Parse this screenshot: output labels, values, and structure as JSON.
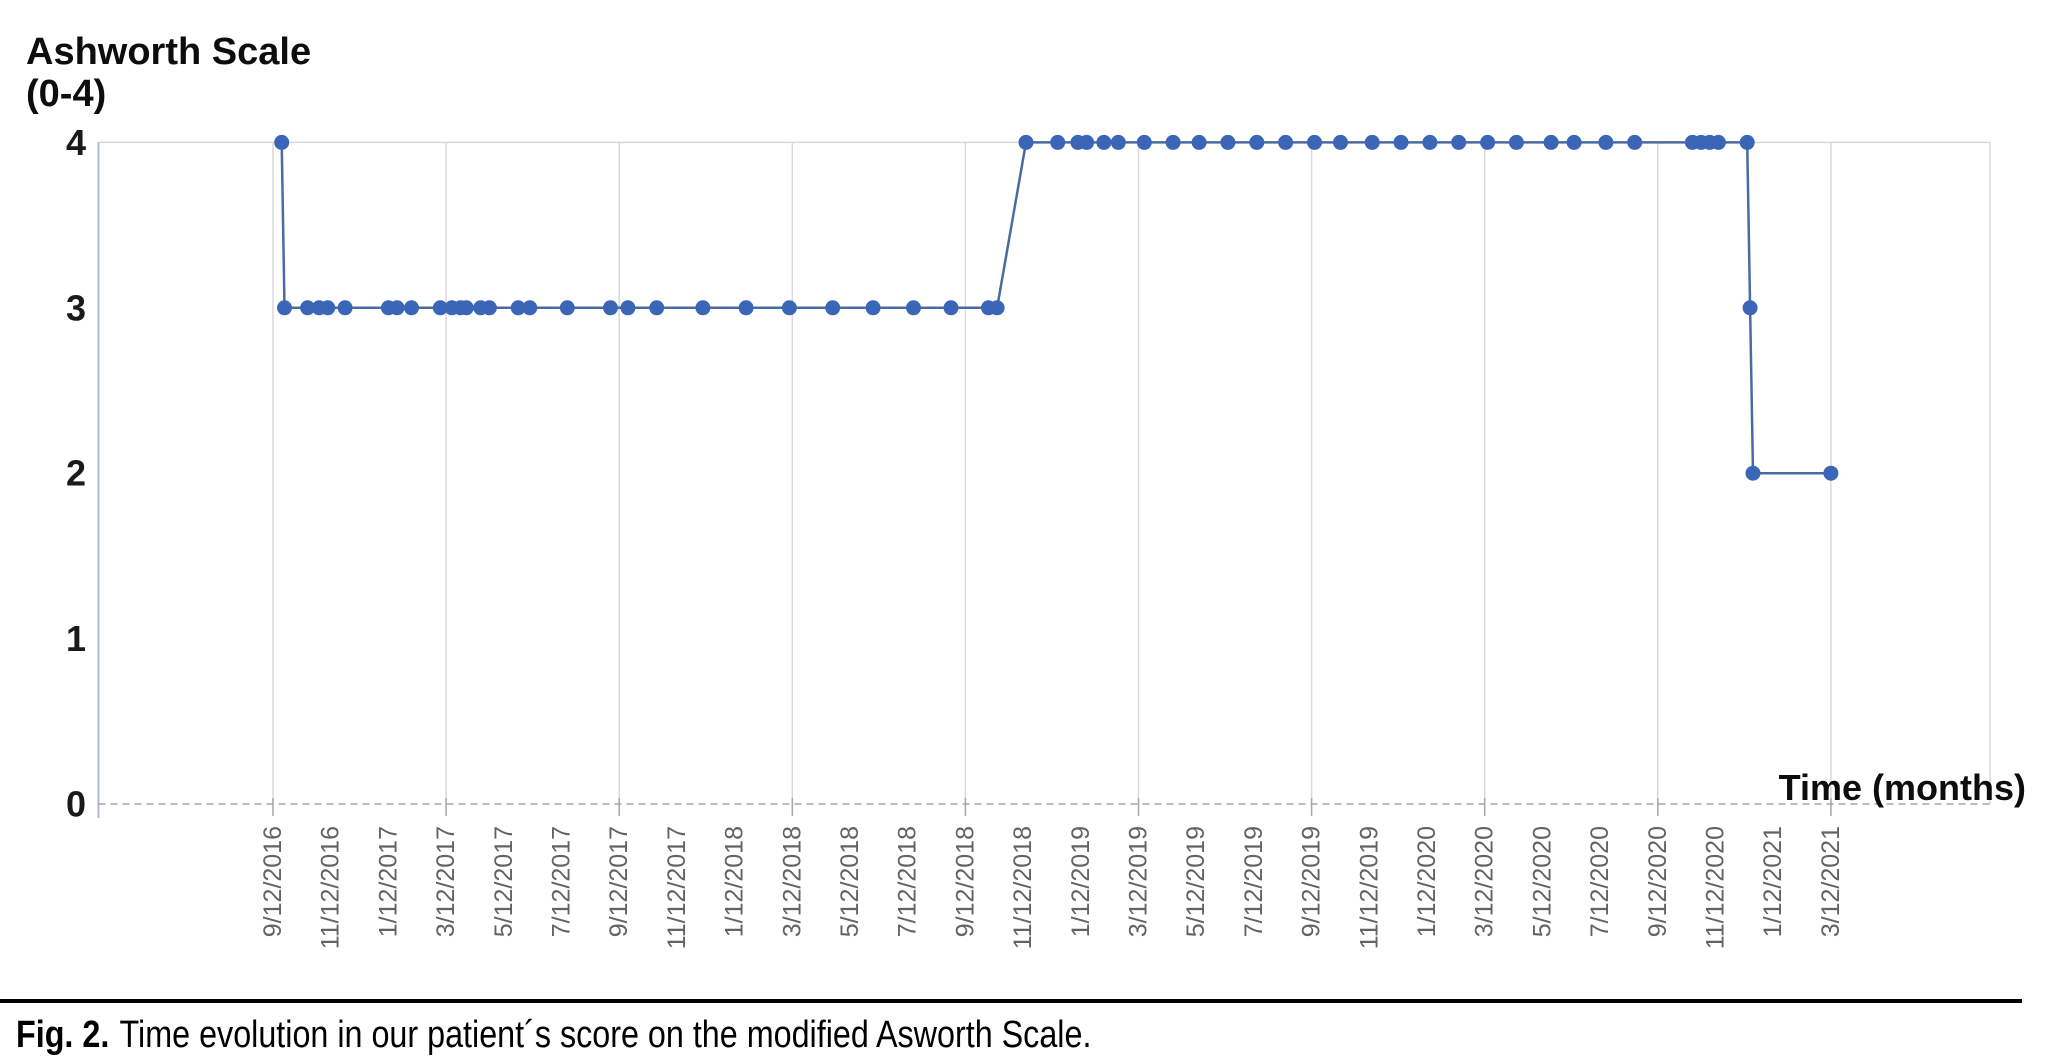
{
  "figure": {
    "y_axis_title_line1": "Ashworth Scale",
    "y_axis_title_line2": "(0-4)",
    "x_axis_title": "Time (months)",
    "caption_label": "Fig. 2.",
    "caption_text": "Time evolution in our patient´s score on the modified Asworth Scale."
  },
  "chart_data": {
    "type": "line",
    "title": "",
    "ylabel": "Ashworth Scale (0-4)",
    "xlabel": "Time (months)",
    "ylim": [
      0,
      4
    ],
    "y_ticks": [
      0,
      1,
      2,
      3,
      4
    ],
    "x_unit": "months since 9/12/2016",
    "x_tick_interval_months": 2,
    "gridline_every_months": 6,
    "grid": "vertical-only",
    "legend": "none",
    "x_tick_labels": [
      "9/12/2016",
      "11/12/2016",
      "1/12/2017",
      "3/12/2017",
      "5/12/2017",
      "7/12/2017",
      "9/12/2017",
      "11/12/2017",
      "1/12/2018",
      "3/12/2018",
      "5/12/2018",
      "7/12/2018",
      "9/12/2018",
      "11/12/2018",
      "1/12/2019",
      "3/12/2019",
      "5/12/2019",
      "7/12/2019",
      "9/12/2019",
      "11/12/2019",
      "1/12/2020",
      "3/12/2020",
      "5/12/2020",
      "7/12/2020",
      "9/12/2020",
      "11/12/2020",
      "1/12/2021",
      "3/12/2021"
    ],
    "series": [
      {
        "name": "Modified Ashworth score",
        "points": [
          [
            0.3,
            4
          ],
          [
            0.4,
            3
          ],
          [
            1.2,
            3
          ],
          [
            1.6,
            3
          ],
          [
            1.9,
            3
          ],
          [
            2.5,
            3
          ],
          [
            4.0,
            3
          ],
          [
            4.3,
            3
          ],
          [
            4.8,
            3
          ],
          [
            5.8,
            3
          ],
          [
            6.2,
            3
          ],
          [
            6.5,
            3
          ],
          [
            6.7,
            3
          ],
          [
            7.2,
            3
          ],
          [
            7.5,
            3
          ],
          [
            8.5,
            3
          ],
          [
            8.9,
            3
          ],
          [
            10.2,
            3
          ],
          [
            11.7,
            3
          ],
          [
            12.3,
            3
          ],
          [
            13.3,
            3
          ],
          [
            14.9,
            3
          ],
          [
            16.4,
            3
          ],
          [
            17.9,
            3
          ],
          [
            19.4,
            3
          ],
          [
            20.8,
            3
          ],
          [
            22.2,
            3
          ],
          [
            23.5,
            3
          ],
          [
            24.8,
            3
          ],
          [
            25.1,
            3
          ],
          [
            26.1,
            4
          ],
          [
            27.2,
            4
          ],
          [
            27.9,
            4
          ],
          [
            28.2,
            4
          ],
          [
            28.8,
            4
          ],
          [
            29.3,
            4
          ],
          [
            30.2,
            4
          ],
          [
            31.2,
            4
          ],
          [
            32.1,
            4
          ],
          [
            33.1,
            4
          ],
          [
            34.1,
            4
          ],
          [
            35.1,
            4
          ],
          [
            36.1,
            4
          ],
          [
            37.0,
            4
          ],
          [
            38.1,
            4
          ],
          [
            39.1,
            4
          ],
          [
            40.1,
            4
          ],
          [
            41.1,
            4
          ],
          [
            42.1,
            4
          ],
          [
            43.1,
            4
          ],
          [
            44.3,
            4
          ],
          [
            45.1,
            4
          ],
          [
            46.2,
            4
          ],
          [
            47.2,
            4
          ],
          [
            49.2,
            4
          ],
          [
            49.5,
            4
          ],
          [
            49.8,
            4
          ],
          [
            50.1,
            4
          ],
          [
            51.1,
            4
          ],
          [
            51.2,
            3
          ],
          [
            51.3,
            2
          ],
          [
            54.0,
            2
          ]
        ]
      }
    ],
    "colors": {
      "marker": "#3b66b8",
      "line": "#4a6b9e",
      "grid": "#d9d9d9",
      "axis_line": "#b0b9c8",
      "zero_line": "#a6a6a6",
      "x_tick_label": "#636363",
      "y_tick_label": "#1a1a1a",
      "text": "#0d0d0d"
    }
  }
}
